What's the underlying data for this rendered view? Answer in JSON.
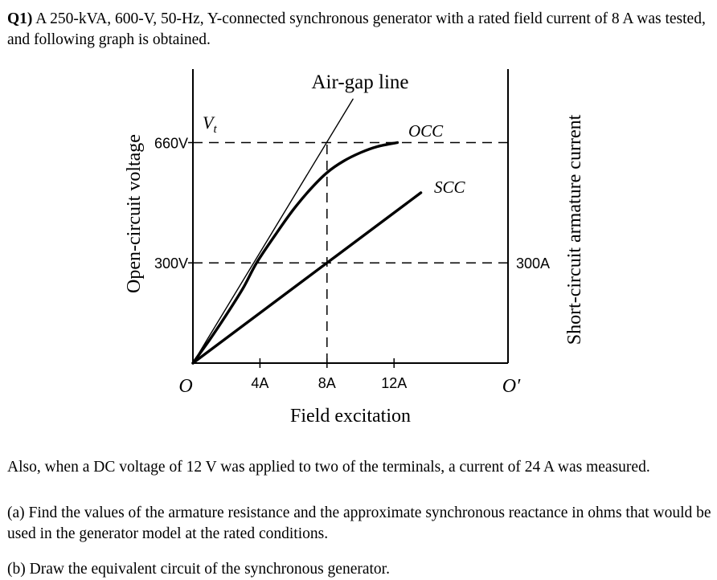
{
  "question": {
    "number": "Q1)",
    "statement": " A 250-kVA, 600-V, 50-Hz, Y-connected synchronous generator with a rated field current of 8 A was tested, and following graph is obtained."
  },
  "chart_data": {
    "type": "line",
    "xlabel": "Field excitation",
    "ylabel_left": "Open-circuit voltage",
    "ylabel_right": "Short-circuit armature current",
    "origin_label": "O",
    "origin_right_label": "O′",
    "x_ticks": [
      {
        "value": 4,
        "label": "4A"
      },
      {
        "value": 8,
        "label": "8A"
      },
      {
        "value": 12,
        "label": "12A"
      }
    ],
    "y_ticks_left": [
      {
        "value": 300,
        "label": "300V"
      },
      {
        "value": 660,
        "label": "660V"
      }
    ],
    "y_ticks_right": [
      {
        "value": 300,
        "label": "300A"
      }
    ],
    "xlim": [
      0,
      18.8
    ],
    "ylim_left": [
      0,
      880
    ],
    "annotations": {
      "airgap": "Air-gap line",
      "vt_main": "V",
      "vt_sub": "t",
      "occ": "OCC",
      "scc": "SCC"
    },
    "series": [
      {
        "name": "OCC",
        "x": [
          0,
          1,
          2,
          3,
          3.8,
          5,
          6,
          7,
          8,
          9,
          10,
          11,
          12.2
        ],
        "y": [
          0,
          70,
          145,
          225,
          300,
          390,
          460,
          520,
          570,
          605,
          630,
          648,
          660
        ]
      },
      {
        "name": "SCC",
        "x": [
          0,
          8,
          13.6
        ],
        "y": [
          0,
          300,
          510
        ]
      },
      {
        "name": "Air-gap line",
        "x": [
          0,
          9.55
        ],
        "y": [
          0,
          790
        ]
      }
    ]
  },
  "paragraphs": {
    "also": "Also, when a DC voltage of 12 V was applied to two of the terminals, a current of 24 A was measured.",
    "part_a": "(a) Find the values of the armature resistance and the approximate synchronous reactance in ohms that would be used in the generator model at the rated conditions.",
    "part_b": "(b) Draw the equivalent circuit of the synchronous generator."
  }
}
